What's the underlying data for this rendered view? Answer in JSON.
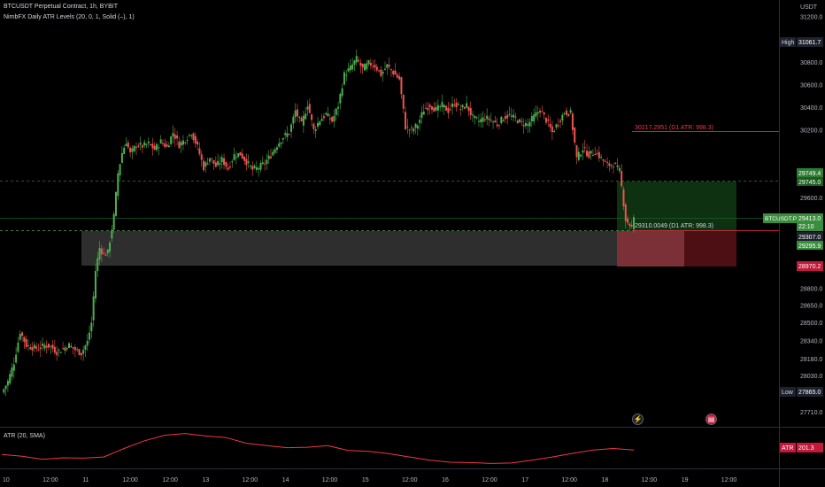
{
  "legend": {
    "symbol_line": "BTCUSDT Perpetual Contract, 1h, BYBIT",
    "indicator_line": "NimbFX Daily ATR Levels (20, 0, 1, Solid (–), 1)",
    "atr_pane": "ATR (20, SMA)"
  },
  "price_axis": {
    "unit": "USDT",
    "ticks": [
      "31200.0",
      "31000.0",
      "30800.0",
      "30600.0",
      "30400.0",
      "30200.0",
      "29600.0",
      "28800.0",
      "28650.0",
      "28500.0",
      "28340.0",
      "28180.0",
      "28030.0",
      "27710.0"
    ]
  },
  "price_labels": {
    "high_tag": "High",
    "high_value": "31061.7",
    "low_tag": "Low",
    "low_value": "27865.0",
    "target_1": "29749.4",
    "target_2": "29745.0",
    "symbol_tag": "BTCUSDT.P",
    "last_price": "29413.0",
    "countdown": "22:10",
    "entry_1": "29307.0",
    "entry_2": "29295.9",
    "stop": "28970.2",
    "atr_tag": "ATR",
    "atr_value": "201.3"
  },
  "levels": {
    "upper_label": "30217.2951 (D1 ATR: 998.3)",
    "lower_label": "29310.0049 (D1 ATR: 998.3)"
  },
  "time_axis": {
    "labels": [
      "10",
      "12:00",
      "11",
      "12:00",
      "12:00",
      "13",
      "12:00",
      "14",
      "12:00",
      "15",
      "12:00",
      "16",
      "12:00",
      "17",
      "12:00",
      "18",
      "12:00",
      "19",
      "12:00"
    ]
  },
  "icons": {
    "flash": "lightning-icon",
    "news": "news-icon"
  },
  "colors": {
    "background": "#000000",
    "up": "#26a69a",
    "up_candle": "#4caf50",
    "down": "#ef5350",
    "atr_line": "#f23645",
    "level_line": "#f23645",
    "target_zone": "#0f3a14",
    "stop_zone": "#5a1017",
    "demand_zone": "#3a3a3a"
  },
  "chart_data": {
    "type": "candlestick",
    "title": "BTCUSDT Perpetual Contract, 1h, BYBIT",
    "ylim": [
      27580,
      31350
    ],
    "high": 31061.7,
    "low": 27865.0,
    "last": 29413.0,
    "atr_levels": [
      30217.2951,
      29310.0049
    ],
    "d1_atr": 998.3,
    "long_position": {
      "target": 29749.4,
      "entry": 29307.0,
      "stop": 28970.2
    },
    "close_path": [
      [
        0,
        27880
      ],
      [
        3,
        27980
      ],
      [
        6,
        28150
      ],
      [
        9,
        28420
      ],
      [
        12,
        28300
      ],
      [
        15,
        28280
      ],
      [
        18,
        28270
      ],
      [
        21,
        28300
      ],
      [
        24,
        28290
      ],
      [
        27,
        28240
      ],
      [
        30,
        28270
      ],
      [
        33,
        28300
      ],
      [
        36,
        28260
      ],
      [
        39,
        28230
      ],
      [
        42,
        28330
      ],
      [
        44,
        28500
      ],
      [
        46,
        28960
      ],
      [
        48,
        29160
      ],
      [
        50,
        29100
      ],
      [
        52,
        29120
      ],
      [
        55,
        29440
      ],
      [
        57,
        29820
      ],
      [
        59,
        30000
      ],
      [
        61,
        30100
      ],
      [
        63,
        29990
      ],
      [
        66,
        30070
      ],
      [
        69,
        30060
      ],
      [
        72,
        30080
      ],
      [
        75,
        30030
      ],
      [
        78,
        30100
      ],
      [
        81,
        30050
      ],
      [
        84,
        30180
      ],
      [
        87,
        30070
      ],
      [
        90,
        30120
      ],
      [
        93,
        30180
      ],
      [
        96,
        30050
      ],
      [
        99,
        29870
      ],
      [
        102,
        29960
      ],
      [
        105,
        29880
      ],
      [
        108,
        29940
      ],
      [
        111,
        29860
      ],
      [
        114,
        29980
      ],
      [
        117,
        29990
      ],
      [
        120,
        29920
      ],
      [
        123,
        29850
      ],
      [
        126,
        29870
      ],
      [
        129,
        29910
      ],
      [
        132,
        29980
      ],
      [
        135,
        30070
      ],
      [
        138,
        30140
      ],
      [
        141,
        30180
      ],
      [
        144,
        30370
      ],
      [
        147,
        30250
      ],
      [
        150,
        30430
      ],
      [
        153,
        30200
      ],
      [
        156,
        30290
      ],
      [
        159,
        30340
      ],
      [
        162,
        30280
      ],
      [
        165,
        30420
      ],
      [
        168,
        30690
      ],
      [
        171,
        30750
      ],
      [
        174,
        30830
      ],
      [
        177,
        30740
      ],
      [
        180,
        30790
      ],
      [
        183,
        30770
      ],
      [
        186,
        30690
      ],
      [
        189,
        30770
      ],
      [
        192,
        30710
      ],
      [
        195,
        30650
      ],
      [
        198,
        30230
      ],
      [
        201,
        30200
      ],
      [
        204,
        30250
      ],
      [
        207,
        30380
      ],
      [
        210,
        30420
      ],
      [
        213,
        30380
      ],
      [
        216,
        30420
      ],
      [
        219,
        30370
      ],
      [
        222,
        30440
      ],
      [
        225,
        30390
      ],
      [
        228,
        30420
      ],
      [
        231,
        30310
      ],
      [
        234,
        30280
      ],
      [
        237,
        30310
      ],
      [
        240,
        30290
      ],
      [
        243,
        30250
      ],
      [
        246,
        30310
      ],
      [
        249,
        30330
      ],
      [
        252,
        30300
      ],
      [
        255,
        30260
      ],
      [
        258,
        30250
      ],
      [
        261,
        30320
      ],
      [
        264,
        30380
      ],
      [
        267,
        30290
      ],
      [
        270,
        30180
      ],
      [
        273,
        30270
      ],
      [
        276,
        30360
      ],
      [
        279,
        30350
      ],
      [
        282,
        29950
      ],
      [
        285,
        30040
      ],
      [
        288,
        29980
      ],
      [
        291,
        30010
      ],
      [
        294,
        29950
      ],
      [
        297,
        29890
      ],
      [
        300,
        29900
      ],
      [
        303,
        29840
      ],
      [
        306,
        29410
      ],
      [
        309,
        29340
      ],
      [
        310,
        29413
      ]
    ],
    "atr_series": [
      [
        0,
        190
      ],
      [
        10,
        186
      ],
      [
        20,
        178
      ],
      [
        30,
        182
      ],
      [
        40,
        181
      ],
      [
        50,
        184
      ],
      [
        60,
        205
      ],
      [
        70,
        224
      ],
      [
        80,
        238
      ],
      [
        90,
        242
      ],
      [
        100,
        236
      ],
      [
        110,
        232
      ],
      [
        120,
        218
      ],
      [
        130,
        212
      ],
      [
        140,
        207
      ],
      [
        150,
        208
      ],
      [
        160,
        212
      ],
      [
        170,
        200
      ],
      [
        180,
        198
      ],
      [
        190,
        192
      ],
      [
        200,
        184
      ],
      [
        210,
        176
      ],
      [
        220,
        171
      ],
      [
        230,
        170
      ],
      [
        240,
        168
      ],
      [
        250,
        169
      ],
      [
        260,
        176
      ],
      [
        270,
        184
      ],
      [
        280,
        193
      ],
      [
        290,
        201
      ],
      [
        300,
        205
      ],
      [
        310,
        201.3
      ]
    ]
  }
}
